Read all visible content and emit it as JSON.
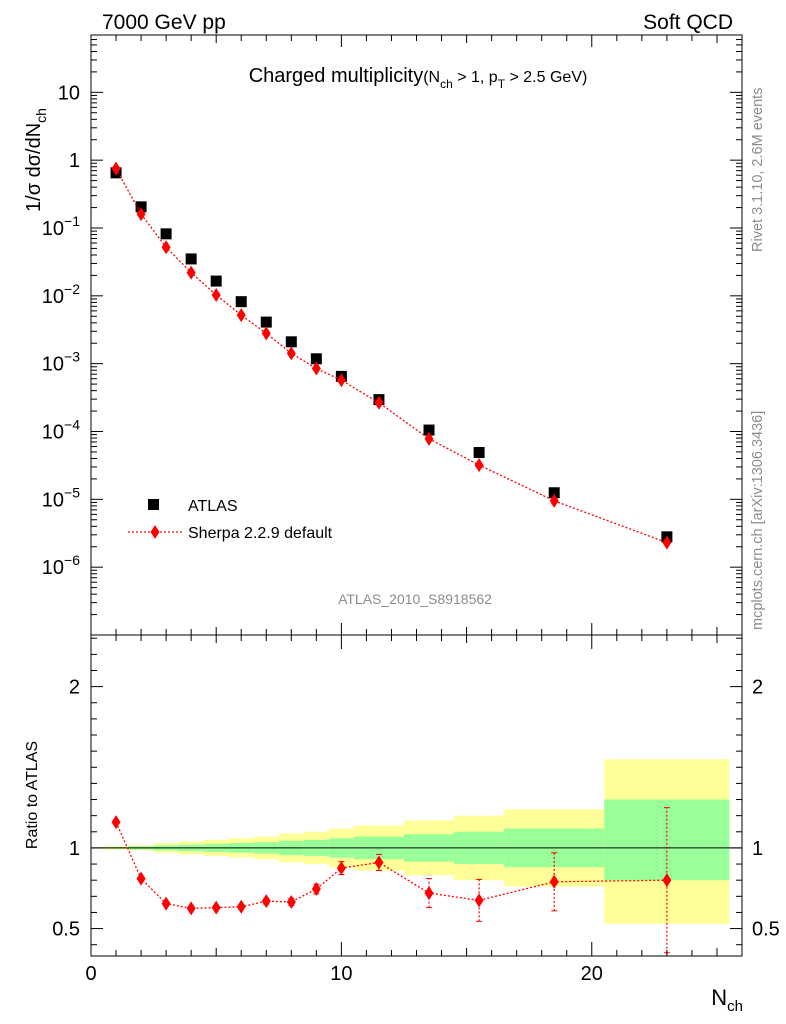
{
  "header": {
    "left": "7000 GeV pp",
    "right": "Soft QCD"
  },
  "side_labels": {
    "rivet": "Rivet 3.1.10,  2.6M events",
    "mcplots": "mcplots.cern.ch [arXiv:1306.3436]"
  },
  "chart_data": [
    {
      "type": "scatter",
      "title": "Charged multiplicity",
      "title_suffix": {
        "prefix": "(N",
        "sub1": "ch",
        "middle": " > 1, p",
        "sub2": "T",
        "suffix": " > 2.5 GeV)"
      },
      "ylabel": "1/σ dσ/dN",
      "ylabel_sub": "ch",
      "y_scale": "log",
      "ylim": [
        1e-07,
        70
      ],
      "xlim": [
        0,
        26
      ],
      "y_ticks": [
        {
          "v": 1e-06,
          "base": "10",
          "exp": "−6"
        },
        {
          "v": 1e-05,
          "base": "10",
          "exp": "−5"
        },
        {
          "v": 0.0001,
          "base": "10",
          "exp": "−4"
        },
        {
          "v": 0.001,
          "base": "10",
          "exp": "−3"
        },
        {
          "v": 0.01,
          "base": "10",
          "exp": "−2"
        },
        {
          "v": 0.1,
          "base": "10",
          "exp": "−1"
        },
        {
          "v": 1,
          "base": "1",
          "exp": ""
        },
        {
          "v": 10,
          "base": "10",
          "exp": ""
        }
      ],
      "analysis_id": "ATLAS_2010_S8918562",
      "legend_position": "bottom-left",
      "series": [
        {
          "name": "ATLAS",
          "color": "#000000",
          "marker": "square",
          "x": [
            1,
            2,
            3,
            4,
            5,
            6,
            7,
            8,
            9,
            10,
            11.5,
            13.5,
            15.5,
            18.5,
            23
          ],
          "y": [
            0.65,
            0.205,
            0.082,
            0.035,
            0.0165,
            0.0082,
            0.0041,
            0.0021,
            0.00118,
            0.00065,
            0.000295,
            0.000105,
            4.9e-05,
            1.25e-05,
            2.8e-06
          ]
        },
        {
          "name": "Sherpa 2.2.9 default",
          "color": "#ff0000",
          "marker": "diamond",
          "line": "dotted",
          "x": [
            1,
            2,
            3,
            4,
            5,
            6,
            7,
            8,
            9,
            10,
            11.5,
            13.5,
            15.5,
            18.5,
            23
          ],
          "y": [
            0.75,
            0.16,
            0.052,
            0.022,
            0.0103,
            0.0052,
            0.0028,
            0.00142,
            0.00085,
            0.00057,
            0.000265,
            7.8e-05,
            3.2e-05,
            9.5e-06,
            2.3e-06
          ]
        }
      ]
    },
    {
      "type": "scatter",
      "ylabel": "Ratio to ATLAS",
      "xlabel": "N",
      "xlabel_sub": "ch",
      "xlim": [
        0,
        26
      ],
      "ylim": [
        0.33,
        2.32
      ],
      "x_ticks": [
        0,
        10,
        20
      ],
      "y_ticks": [
        0.5,
        1,
        2
      ],
      "reference_line": 1,
      "bands": [
        {
          "x0": 0.5,
          "x1": 1.5,
          "green": [
            0.995,
            1.005
          ],
          "yellow": [
            0.99,
            1.01
          ]
        },
        {
          "x0": 1.5,
          "x1": 2.5,
          "green": [
            0.99,
            1.01
          ],
          "yellow": [
            0.985,
            1.015
          ]
        },
        {
          "x0": 2.5,
          "x1": 3.5,
          "green": [
            0.985,
            1.015
          ],
          "yellow": [
            0.97,
            1.03
          ]
        },
        {
          "x0": 3.5,
          "x1": 4.5,
          "green": [
            0.98,
            1.02
          ],
          "yellow": [
            0.96,
            1.04
          ]
        },
        {
          "x0": 4.5,
          "x1": 5.5,
          "green": [
            0.975,
            1.025
          ],
          "yellow": [
            0.95,
            1.05
          ]
        },
        {
          "x0": 5.5,
          "x1": 6.5,
          "green": [
            0.97,
            1.03
          ],
          "yellow": [
            0.94,
            1.06
          ]
        },
        {
          "x0": 6.5,
          "x1": 7.5,
          "green": [
            0.965,
            1.035
          ],
          "yellow": [
            0.93,
            1.07
          ]
        },
        {
          "x0": 7.5,
          "x1": 8.5,
          "green": [
            0.955,
            1.045
          ],
          "yellow": [
            0.91,
            1.09
          ]
        },
        {
          "x0": 8.5,
          "x1": 9.5,
          "green": [
            0.95,
            1.05
          ],
          "yellow": [
            0.9,
            1.1
          ]
        },
        {
          "x0": 9.5,
          "x1": 10.5,
          "green": [
            0.94,
            1.06
          ],
          "yellow": [
            0.88,
            1.12
          ]
        },
        {
          "x0": 10.5,
          "x1": 12.5,
          "green": [
            0.93,
            1.07
          ],
          "yellow": [
            0.86,
            1.14
          ]
        },
        {
          "x0": 12.5,
          "x1": 14.5,
          "green": [
            0.915,
            1.085
          ],
          "yellow": [
            0.83,
            1.17
          ]
        },
        {
          "x0": 14.5,
          "x1": 16.5,
          "green": [
            0.9,
            1.1
          ],
          "yellow": [
            0.8,
            1.2
          ]
        },
        {
          "x0": 16.5,
          "x1": 20.5,
          "green": [
            0.88,
            1.12
          ],
          "yellow": [
            0.76,
            1.24
          ]
        },
        {
          "x0": 20.5,
          "x1": 25.5,
          "green": [
            0.8,
            1.3
          ],
          "yellow": [
            0.53,
            1.55
          ]
        }
      ],
      "series": [
        {
          "name": "Sherpa 2.2.9 default",
          "color": "#ff0000",
          "marker": "diamond",
          "line": "dotted",
          "x": [
            1,
            2,
            3,
            4,
            5,
            6,
            7,
            8,
            9,
            10,
            11.5,
            13.5,
            15.5,
            18.5,
            23
          ],
          "y": [
            1.16,
            0.81,
            0.655,
            0.625,
            0.63,
            0.635,
            0.67,
            0.665,
            0.745,
            0.875,
            0.91,
            0.72,
            0.675,
            0.79,
            0.8
          ],
          "err": [
            0.012,
            0.01,
            0.01,
            0.01,
            0.012,
            0.014,
            0.018,
            0.022,
            0.03,
            0.04,
            0.05,
            0.09,
            0.13,
            0.18,
            0.45
          ]
        }
      ]
    }
  ]
}
